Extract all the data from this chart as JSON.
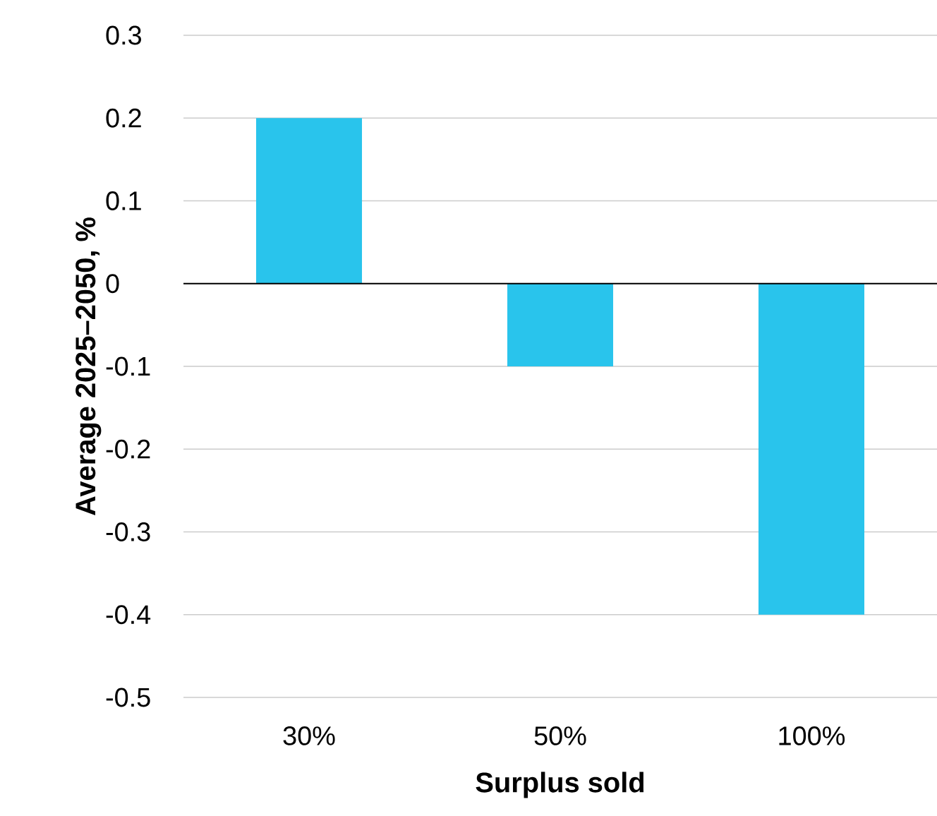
{
  "chart_data": {
    "type": "bar",
    "xlabel": "Surplus sold",
    "ylabel": "Average 2025–2050, %",
    "categories": [
      "30%",
      "50%",
      "100%"
    ],
    "values": [
      0.2,
      -0.1,
      -0.4
    ],
    "color": "#29c4ec",
    "ylim": [
      -0.5,
      0.3
    ],
    "yticks": [
      -0.5,
      -0.4,
      -0.3,
      -0.2,
      -0.1,
      0,
      0.1,
      0.2,
      0.3
    ],
    "grid": "y"
  }
}
